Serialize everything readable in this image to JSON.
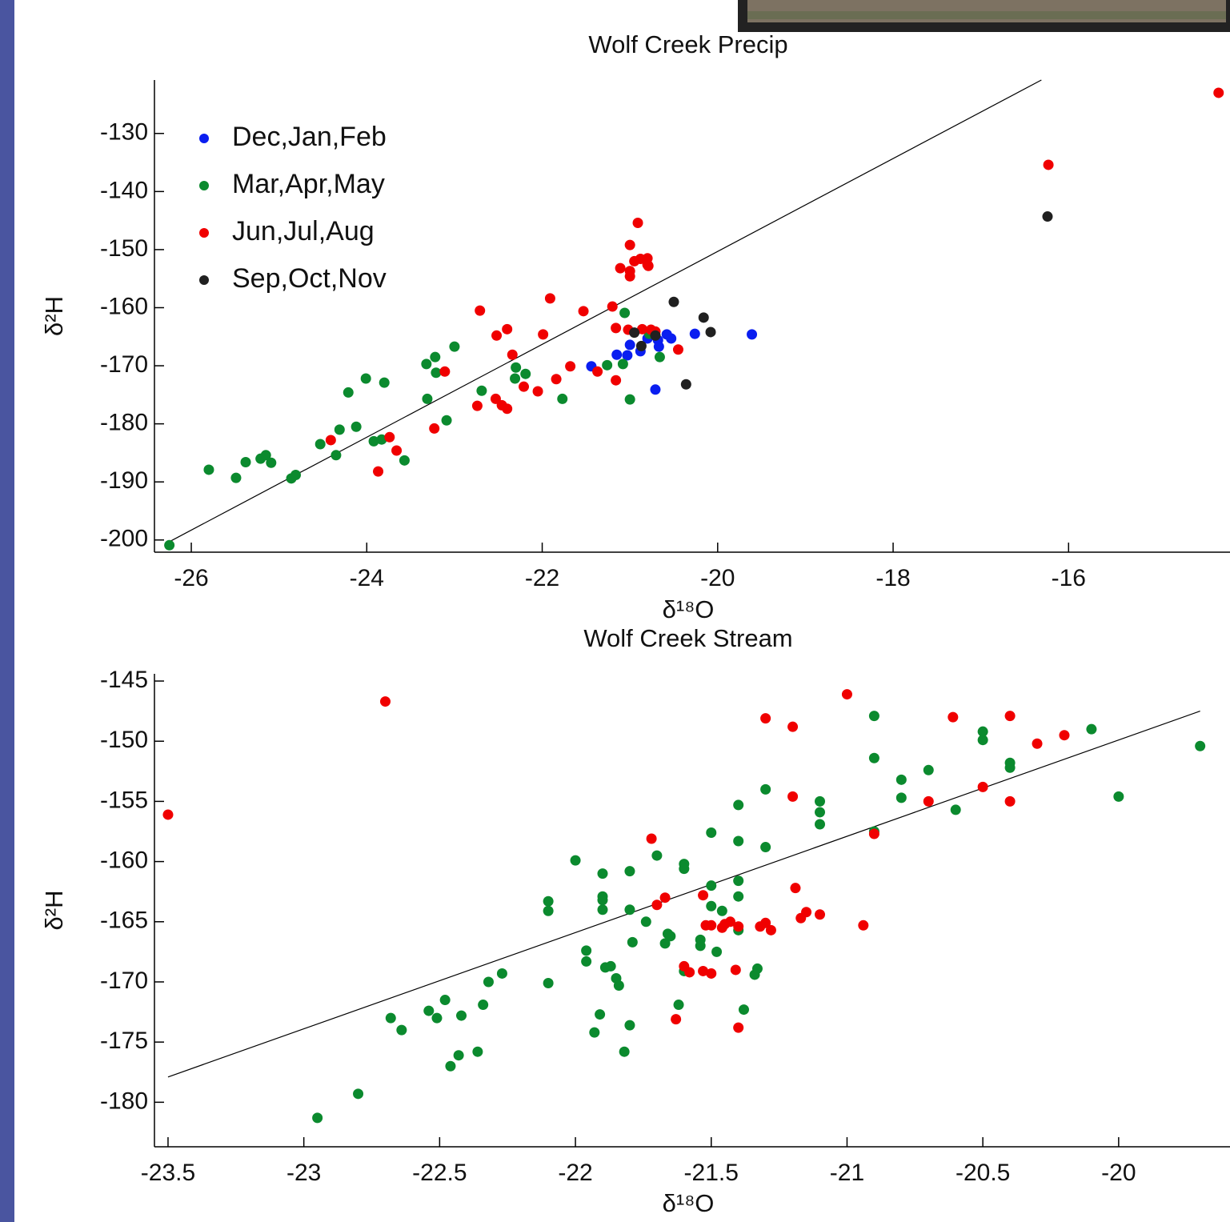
{
  "chart_data": [
    {
      "type": "scatter",
      "title": "Wolf Creek Precip",
      "x_label": "δ¹⁸O",
      "y_label": "δ²H",
      "xlim": [
        -26.42,
        -14.16
      ],
      "ylim": [
        -202.1,
        -120.8
      ],
      "xticks": [
        -26,
        -24,
        -22,
        -20,
        -18,
        -16
      ],
      "yticks": [
        -200,
        -190,
        -180,
        -170,
        -160,
        -150,
        -140,
        -130
      ],
      "legend": "upper left",
      "fit_line": {
        "x": [
          -26.25,
          -16.31
        ],
        "y": [
          -200.3,
          -120.8
        ]
      },
      "series": [
        {
          "name": "Dec,Jan,Feb",
          "color": "#0a1ef0",
          "x": [
            -21.44,
            -21.15,
            -21.03,
            -21.0,
            -20.88,
            -20.8,
            -20.68,
            -20.67,
            -20.58,
            -20.53,
            -20.71,
            -20.26,
            -19.61
          ],
          "y": [
            -170.1,
            -168.1,
            -168.2,
            -166.4,
            -167.5,
            -165.3,
            -165.6,
            -166.7,
            -164.6,
            -165.3,
            -174.1,
            -164.5,
            -164.6
          ]
        },
        {
          "name": "Mar,Apr,May",
          "color": "#0b8a2e",
          "x": [
            -26.25,
            -25.8,
            -25.49,
            -25.38,
            -25.21,
            -25.15,
            -25.09,
            -24.86,
            -24.81,
            -24.53,
            -24.35,
            -24.31,
            -24.21,
            -24.12,
            -24.01,
            -23.92,
            -23.83,
            -23.8,
            -23.57,
            -23.32,
            -23.31,
            -23.22,
            -23.21,
            -23.09,
            -23.0,
            -22.69,
            -22.3,
            -22.31,
            -22.19,
            -21.77,
            -21.26,
            -21.08,
            -21.06,
            -21.0,
            -20.66,
            -20.78
          ],
          "y": [
            -200.9,
            -187.9,
            -189.3,
            -186.6,
            -186.0,
            -185.4,
            -186.7,
            -189.4,
            -188.8,
            -183.5,
            -185.4,
            -181.0,
            -174.6,
            -180.5,
            -172.2,
            -183.0,
            -182.7,
            -172.9,
            -186.3,
            -169.7,
            -175.7,
            -168.5,
            -171.2,
            -179.4,
            -166.7,
            -174.3,
            -170.3,
            -172.2,
            -171.4,
            -175.7,
            -169.9,
            -169.7,
            -160.9,
            -175.8,
            -168.5,
            -164.5
          ]
        },
        {
          "name": "Jun,Jul,Aug",
          "color": "#f00000",
          "x": [
            -14.29,
            -16.23,
            -24.41,
            -23.87,
            -23.74,
            -23.66,
            -23.23,
            -23.11,
            -22.74,
            -22.71,
            -22.53,
            -22.52,
            -22.46,
            -22.4,
            -22.4,
            -22.34,
            -22.21,
            -22.05,
            -21.99,
            -21.91,
            -21.84,
            -21.68,
            -21.53,
            -21.37,
            -21.2,
            -21.16,
            -21.16,
            -21.11,
            -21.0,
            -21.0,
            -21.0,
            -21.02,
            -20.95,
            -20.91,
            -20.88,
            -20.86,
            -20.8,
            -20.8,
            -20.79,
            -20.76,
            -20.71,
            -20.45
          ],
          "y": [
            -123.0,
            -135.4,
            -182.8,
            -188.2,
            -182.3,
            -184.6,
            -180.8,
            -171.0,
            -176.9,
            -160.5,
            -175.7,
            -164.8,
            -176.8,
            -163.7,
            -177.4,
            -168.1,
            -173.6,
            -174.4,
            -164.6,
            -158.4,
            -172.3,
            -170.1,
            -160.6,
            -171.0,
            -159.8,
            -163.5,
            -172.5,
            -153.2,
            -149.2,
            -153.7,
            -154.6,
            -163.8,
            -152.0,
            -145.4,
            -151.6,
            -163.7,
            -152.6,
            -151.5,
            -152.8,
            -163.8,
            -164.1,
            -167.2
          ]
        },
        {
          "name": "Sep,Oct,Nov",
          "color": "#202020",
          "x": [
            -16.24,
            -20.95,
            -20.87,
            -20.71,
            -20.5,
            -20.36,
            -20.16,
            -20.08
          ],
          "y": [
            -144.3,
            -164.3,
            -166.6,
            -164.8,
            -159.0,
            -173.2,
            -161.7,
            -164.2
          ]
        }
      ]
    },
    {
      "type": "scatter",
      "title": "Wolf Creek Stream",
      "x_label": "δ¹⁸O",
      "y_label": "δ²H",
      "xlim": [
        -23.55,
        -19.59
      ],
      "ylim": [
        -183.7,
        -144.4
      ],
      "xticks": [
        -23.5,
        -23,
        -22.5,
        -22,
        -21.5,
        -21,
        -20.5,
        -20
      ],
      "yticks": [
        -180,
        -175,
        -170,
        -165,
        -160,
        -155,
        -150,
        -145
      ],
      "fit_line": {
        "x": [
          -23.5,
          -19.7
        ],
        "y": [
          -177.9,
          -147.5
        ]
      },
      "series": [
        {
          "color": "#0b8a2e",
          "x": [
            -22.95,
            -22.8,
            -22.68,
            -22.64,
            -22.54,
            -22.51,
            -22.48,
            -22.46,
            -22.43,
            -22.42,
            -22.36,
            -22.34,
            -22.32,
            -22.27,
            -22.1,
            -22.1,
            -22.1,
            -22.0,
            -21.96,
            -21.96,
            -21.93,
            -21.91,
            -21.9,
            -21.9,
            -21.9,
            -21.9,
            -21.89,
            -21.87,
            -21.85,
            -21.84,
            -21.82,
            -21.8,
            -21.8,
            -21.8,
            -21.79,
            -21.74,
            -21.7,
            -21.67,
            -21.66,
            -21.65,
            -21.62,
            -21.6,
            -21.6,
            -21.6,
            -21.54,
            -21.54,
            -21.5,
            -21.5,
            -21.5,
            -21.48,
            -21.46,
            -21.4,
            -21.4,
            -21.4,
            -21.4,
            -21.4,
            -21.38,
            -21.34,
            -21.33,
            -21.3,
            -21.3,
            -21.1,
            -21.1,
            -21.1,
            -20.9,
            -20.9,
            -20.9,
            -20.8,
            -20.8,
            -20.7,
            -20.6,
            -20.5,
            -20.5,
            -20.4,
            -20.4,
            -20.1,
            -20.0,
            -19.7
          ],
          "y": [
            -181.3,
            -179.3,
            -173.0,
            -174.0,
            -172.4,
            -173.0,
            -171.5,
            -177.0,
            -176.1,
            -172.8,
            -175.8,
            -171.9,
            -170.0,
            -169.3,
            -163.3,
            -164.1,
            -170.1,
            -159.9,
            -167.4,
            -168.3,
            -174.2,
            -172.7,
            -161.0,
            -162.9,
            -163.2,
            -164.0,
            -168.8,
            -168.7,
            -169.7,
            -170.3,
            -175.8,
            -160.8,
            -164.0,
            -173.6,
            -166.7,
            -165.0,
            -159.5,
            -166.8,
            -166.0,
            -166.2,
            -171.9,
            -160.2,
            -160.6,
            -169.1,
            -166.5,
            -167.0,
            -157.6,
            -162.0,
            -163.7,
            -167.5,
            -164.1,
            -155.3,
            -158.3,
            -161.6,
            -162.9,
            -165.7,
            -172.3,
            -169.4,
            -168.9,
            -154.0,
            -158.8,
            -155.0,
            -155.9,
            -156.9,
            -147.9,
            -151.4,
            -157.5,
            -153.2,
            -154.7,
            -152.4,
            -155.7,
            -149.2,
            -149.9,
            -151.8,
            -152.2,
            -149.0,
            -154.6,
            -150.4
          ]
        },
        {
          "color": "#f00000",
          "x": [
            -23.5,
            -22.7,
            -21.0,
            -21.3,
            -21.2,
            -21.2,
            -20.61,
            -20.4,
            -20.2,
            -20.3,
            -20.7,
            -20.5,
            -20.4,
            -20.9,
            -21.72,
            -21.7,
            -21.67,
            -21.19,
            -21.53,
            -21.17,
            -21.15,
            -21.1,
            -20.94,
            -21.46,
            -21.45,
            -21.43,
            -21.4,
            -21.32,
            -21.3,
            -21.28,
            -21.52,
            -21.5,
            -21.6,
            -21.58,
            -21.53,
            -21.5,
            -21.41,
            -21.63,
            -21.4
          ],
          "y": [
            -156.1,
            -146.7,
            -146.1,
            -148.1,
            -148.8,
            -154.6,
            -148.0,
            -147.9,
            -149.5,
            -150.2,
            -155.0,
            -153.8,
            -155.0,
            -157.7,
            -158.1,
            -163.6,
            -163.0,
            -162.2,
            -162.8,
            -164.7,
            -164.2,
            -164.4,
            -165.3,
            -165.5,
            -165.2,
            -165.0,
            -165.4,
            -165.4,
            -165.1,
            -165.7,
            -165.3,
            -165.3,
            -168.7,
            -169.2,
            -169.1,
            -169.3,
            -169.0,
            -173.1,
            -173.8
          ]
        }
      ]
    }
  ]
}
